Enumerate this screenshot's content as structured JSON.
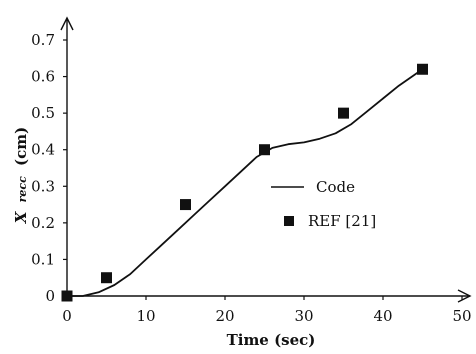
{
  "chart_data": {
    "type": "line",
    "xlabel": "Time (sec)",
    "ylabel": {
      "main": "X",
      "sub": "recc",
      "unit": "(cm)"
    },
    "xlim": [
      0,
      50
    ],
    "ylim": [
      0,
      0.7
    ],
    "x_ticks": [
      "0",
      "10",
      "20",
      "30",
      "40",
      "50"
    ],
    "y_ticks": [
      "0",
      "0.1",
      "0.2",
      "0.3",
      "0.4",
      "0.5",
      "0.6",
      "0.7"
    ],
    "grid": false,
    "legend_position": "center-right",
    "series": [
      {
        "name": "Code",
        "style": "line",
        "color": "#111111",
        "x": [
          0,
          2,
          4,
          6,
          8,
          10,
          12,
          14,
          16,
          18,
          20,
          22,
          24,
          26,
          28,
          30,
          32,
          34,
          36,
          38,
          40,
          42,
          44,
          45
        ],
        "y": [
          0,
          0.0,
          0.01,
          0.03,
          0.06,
          0.1,
          0.14,
          0.18,
          0.22,
          0.26,
          0.3,
          0.34,
          0.38,
          0.405,
          0.415,
          0.42,
          0.43,
          0.445,
          0.47,
          0.505,
          0.54,
          0.575,
          0.605,
          0.62
        ]
      },
      {
        "name": "REF [21]",
        "style": "marker",
        "color": "#111111",
        "x": [
          0,
          5,
          15,
          25,
          35,
          45
        ],
        "y": [
          0,
          0.05,
          0.25,
          0.4,
          0.5,
          0.62
        ]
      }
    ]
  }
}
